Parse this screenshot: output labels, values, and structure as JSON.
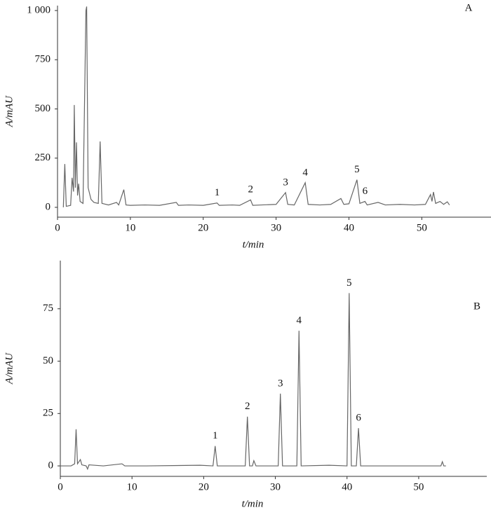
{
  "chart_data": [
    {
      "type": "line",
      "panel_label": "A",
      "xlabel": "t/min",
      "ylabel": "A/mAU",
      "xlim": [
        0,
        59.5
      ],
      "ylim": [
        -50,
        1025
      ],
      "xticks": [
        0,
        10,
        20,
        30,
        40,
        50
      ],
      "yticks": [
        0,
        250,
        500,
        750,
        {
          "value": 1000,
          "label": "1 000"
        }
      ],
      "x": [
        0.8,
        1.0,
        1.2,
        1.8,
        2.0,
        2.2,
        2.3,
        2.45,
        2.6,
        2.75,
        2.9,
        3.1,
        3.5,
        3.9,
        4.0,
        4.2,
        4.6,
        5.0,
        5.6,
        5.85,
        6.1,
        7,
        8.1,
        8.4,
        9.1,
        9.4,
        10,
        12,
        14,
        16.3,
        16.6,
        18,
        20,
        21.9,
        22.2,
        24,
        25,
        26.5,
        26.8,
        28,
        30,
        31.3,
        31.6,
        32.5,
        34,
        34.4,
        36,
        37.5,
        38.9,
        39.3,
        40,
        41.1,
        41.5,
        42.2,
        42.5,
        44,
        45,
        47,
        49,
        50.5,
        51.2,
        51.4,
        51.6,
        51.9,
        52.5,
        53,
        53.5,
        53.8
      ],
      "series": [
        {
          "color": "#666666",
          "values": [
            0,
            220,
            5,
            10,
            150,
            80,
            520,
            100,
            330,
            60,
            120,
            30,
            20,
            1000,
            1020,
            100,
            40,
            25,
            20,
            335,
            20,
            12,
            25,
            12,
            90,
            12,
            10,
            12,
            10,
            25,
            10,
            12,
            10,
            22,
            10,
            12,
            10,
            38,
            10,
            12,
            15,
            75,
            15,
            12,
            125,
            15,
            12,
            15,
            45,
            15,
            18,
            140,
            20,
            30,
            12,
            25,
            12,
            15,
            12,
            15,
            65,
            30,
            78,
            20,
            30,
            15,
            28,
            12
          ]
        }
      ],
      "annotations": [
        {
          "text": "1",
          "x": 21.9,
          "y": 22
        },
        {
          "text": "2",
          "x": 26.5,
          "y": 38
        },
        {
          "text": "3",
          "x": 31.3,
          "y": 75
        },
        {
          "text": "4",
          "x": 34,
          "y": 125
        },
        {
          "text": "5",
          "x": 41.1,
          "y": 140
        },
        {
          "text": "6",
          "x": 42.2,
          "y": 30
        }
      ]
    },
    {
      "type": "line",
      "panel_label": "B",
      "xlabel": "t/min",
      "ylabel": "A/mAU",
      "xlim": [
        0,
        59.5
      ],
      "ylim": [
        -5,
        98
      ],
      "xticks": [
        0,
        10,
        20,
        30,
        40,
        50
      ],
      "yticks": [
        0,
        25,
        50,
        75
      ],
      "x": [
        0,
        1.5,
        2.0,
        2.2,
        2.4,
        2.8,
        3.0,
        3.6,
        3.8,
        4.0,
        6,
        8.6,
        9,
        12,
        19.5,
        21.3,
        21.6,
        21.9,
        25.8,
        26.1,
        26.4,
        26.8,
        27.0,
        27.3,
        30.4,
        30.7,
        31.0,
        33.0,
        33.3,
        33.6,
        37.5,
        40.0,
        40.3,
        40.6,
        41.3,
        41.6,
        41.9,
        45,
        50,
        53.1,
        53.3,
        53.5,
        53.8
      ],
      "series": [
        {
          "color": "#666666",
          "values": [
            0,
            0,
            1,
            17.5,
            1,
            3,
            0.5,
            0,
            -1.5,
            0.5,
            0,
            1,
            0,
            0,
            0.3,
            0,
            9.5,
            0,
            0,
            23.5,
            0,
            0,
            2.5,
            0,
            0,
            34.5,
            0,
            0,
            64.5,
            0,
            0.3,
            0,
            82.5,
            0,
            0,
            18,
            0,
            0,
            0,
            0,
            2,
            0,
            0
          ]
        }
      ],
      "annotations": [
        {
          "text": "1",
          "x": 21.6,
          "y": 9.5
        },
        {
          "text": "2",
          "x": 26.1,
          "y": 23.5
        },
        {
          "text": "3",
          "x": 30.7,
          "y": 34.5
        },
        {
          "text": "4",
          "x": 33.3,
          "y": 64.5
        },
        {
          "text": "5",
          "x": 40.3,
          "y": 82.5
        },
        {
          "text": "6",
          "x": 41.6,
          "y": 18
        }
      ]
    }
  ]
}
